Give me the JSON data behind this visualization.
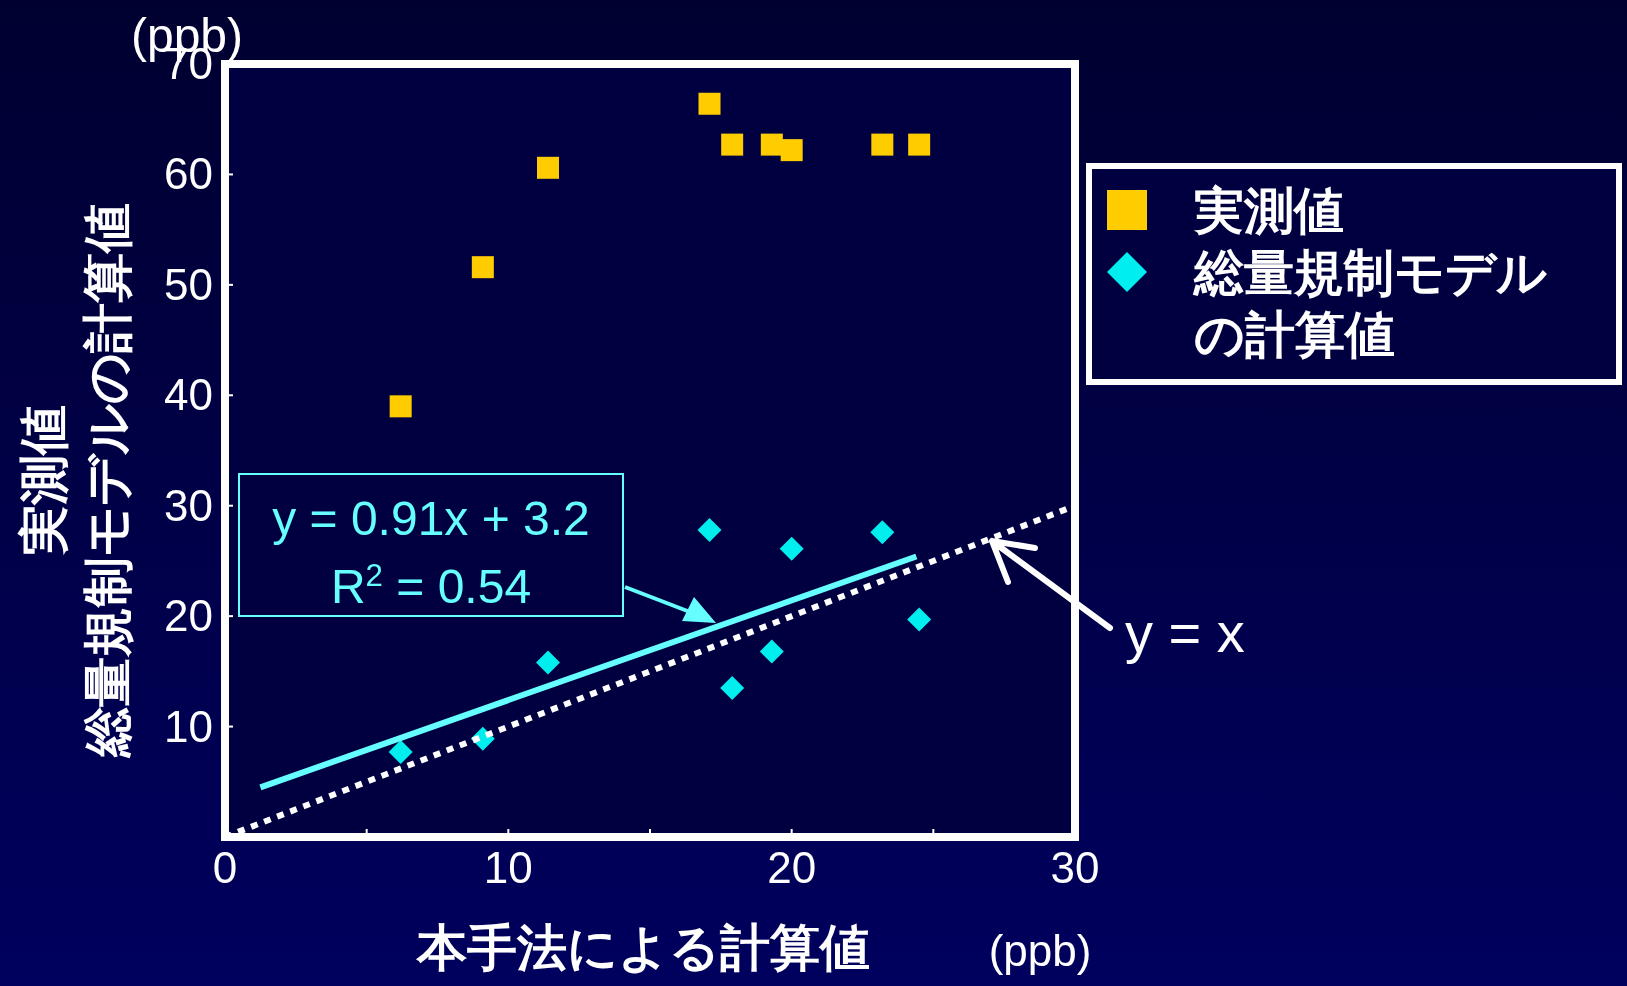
{
  "chart_data": {
    "type": "scatter",
    "xlabel": "本手法による計算値",
    "ylabel": "実測値総量規制モデルの計算値",
    "xlim": [
      0,
      30
    ],
    "ylim": [
      0,
      70
    ],
    "xticks": [
      0,
      {
        "value": 5,
        "label": null
      },
      10,
      {
        "value": 15,
        "label": null
      },
      20,
      {
        "value": 25,
        "label": null
      },
      30
    ],
    "yticks": [
      10,
      20,
      30,
      40,
      50,
      60,
      70
    ],
    "legend": "right",
    "series": [
      {
        "name": "実測値",
        "marker": "square",
        "color": "#ffcc00",
        "x": [
          6.2,
          9.1,
          11.4,
          17.1,
          17.9,
          19.3,
          20.0,
          23.2,
          24.5
        ],
        "values": [
          39.0,
          51.6,
          60.6,
          66.4,
          62.7,
          62.7,
          62.2,
          62.7,
          62.7
        ]
      },
      {
        "name": "総量規制モデルの計算値",
        "marker": "diamond",
        "color": "#00eeee",
        "x": [
          6.2,
          9.1,
          11.4,
          17.1,
          17.9,
          19.3,
          20.0,
          23.2,
          24.5
        ],
        "values": [
          7.7,
          8.9,
          15.8,
          27.8,
          13.5,
          16.8,
          26.1,
          27.6,
          19.7
        ]
      },
      {
        "type": "line",
        "color": "#66ffff",
        "line_style": "solid",
        "x": [
          1.25,
          24.4
        ],
        "values": [
          4.5,
          25.4
        ]
      },
      {
        "name": "y = x",
        "type": "line",
        "color": "#ffffff",
        "line_style": "dotted",
        "x": [
          0,
          30
        ],
        "values": [
          0,
          30
        ]
      }
    ],
    "annotations": [
      "y = 0.91x + 3.2",
      "R$^{2}$ = 0.54",
      "(ppb)",
      "(ppb)"
    ]
  }
}
